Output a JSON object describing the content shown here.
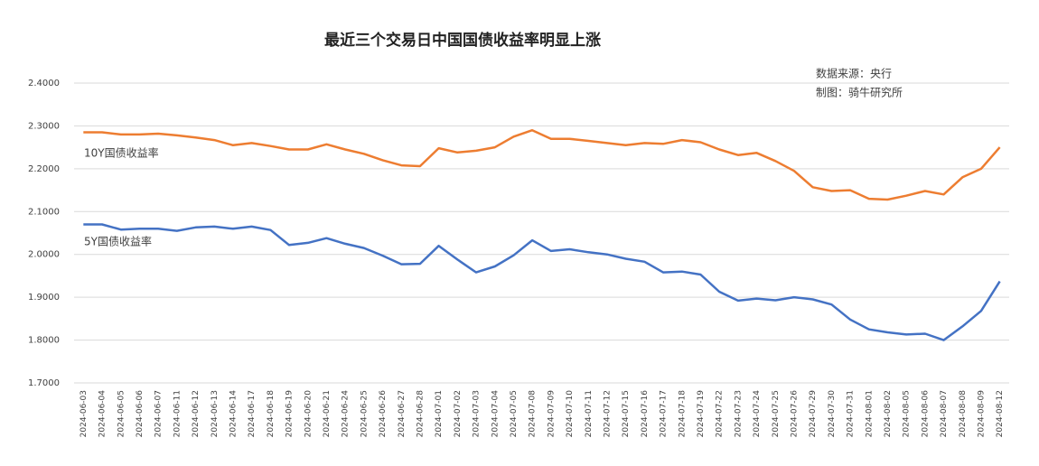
{
  "chart_data": {
    "type": "line",
    "title": "最近三个交易日中国国债收益率明显上涨",
    "annotations": [
      "数据来源：央行",
      "制图：骑牛研究所"
    ],
    "categories": [
      "2024-06-03",
      "2024-06-04",
      "2024-06-05",
      "2024-06-06",
      "2024-06-07",
      "2024-06-11",
      "2024-06-12",
      "2024-06-13",
      "2024-06-14",
      "2024-06-17",
      "2024-06-18",
      "2024-06-19",
      "2024-06-20",
      "2024-06-21",
      "2024-06-24",
      "2024-06-25",
      "2024-06-26",
      "2024-06-27",
      "2024-06-28",
      "2024-07-01",
      "2024-07-02",
      "2024-07-03",
      "2024-07-04",
      "2024-07-05",
      "2024-07-08",
      "2024-07-09",
      "2024-07-10",
      "2024-07-11",
      "2024-07-12",
      "2024-07-15",
      "2024-07-16",
      "2024-07-17",
      "2024-07-18",
      "2024-07-19",
      "2024-07-22",
      "2024-07-23",
      "2024-07-24",
      "2024-07-25",
      "2024-07-26",
      "2024-07-29",
      "2024-07-30",
      "2024-07-31",
      "2024-08-01",
      "2024-08-02",
      "2024-08-05",
      "2024-08-06",
      "2024-08-07",
      "2024-08-08",
      "2024-08-09",
      "2024-08-12"
    ],
    "series": [
      {
        "name": "10Y国债收益率",
        "color": "#ed7d31",
        "values": [
          2.285,
          2.285,
          2.28,
          2.28,
          2.282,
          2.278,
          2.273,
          2.267,
          2.255,
          2.26,
          2.253,
          2.245,
          2.245,
          2.257,
          2.245,
          2.235,
          2.22,
          2.208,
          2.206,
          2.248,
          2.238,
          2.242,
          2.25,
          2.275,
          2.29,
          2.27,
          2.27,
          2.265,
          2.26,
          2.255,
          2.26,
          2.258,
          2.267,
          2.262,
          2.245,
          2.232,
          2.237,
          2.218,
          2.195,
          2.157,
          2.148,
          2.15,
          2.13,
          2.128,
          2.137,
          2.148,
          2.14,
          2.18,
          2.2,
          2.25
        ]
      },
      {
        "name": "5Y国债收益率",
        "color": "#4472c4",
        "values": [
          2.07,
          2.07,
          2.058,
          2.06,
          2.06,
          2.055,
          2.063,
          2.065,
          2.06,
          2.065,
          2.057,
          2.022,
          2.027,
          2.038,
          2.025,
          2.015,
          1.997,
          1.977,
          1.978,
          2.02,
          1.988,
          1.958,
          1.972,
          1.998,
          2.033,
          2.008,
          2.012,
          2.005,
          2.0,
          1.99,
          1.983,
          1.958,
          1.96,
          1.953,
          1.913,
          1.892,
          1.897,
          1.893,
          1.9,
          1.895,
          1.883,
          1.848,
          1.825,
          1.818,
          1.813,
          1.815,
          1.8,
          1.832,
          1.868,
          1.937
        ]
      }
    ],
    "ylim": [
      1.7,
      2.4
    ],
    "yticks": [
      {
        "value": 1.7,
        "label": "1.7000"
      },
      {
        "value": 1.8,
        "label": "1.8000"
      },
      {
        "value": 1.9,
        "label": "1.9000"
      },
      {
        "value": 2.0,
        "label": "2.0000"
      },
      {
        "value": 2.1,
        "label": "2.1000"
      },
      {
        "value": 2.2,
        "label": "2.2000"
      },
      {
        "value": 2.3,
        "label": "2.3000"
      },
      {
        "value": 2.4,
        "label": "2.4000"
      }
    ],
    "grid": true
  }
}
